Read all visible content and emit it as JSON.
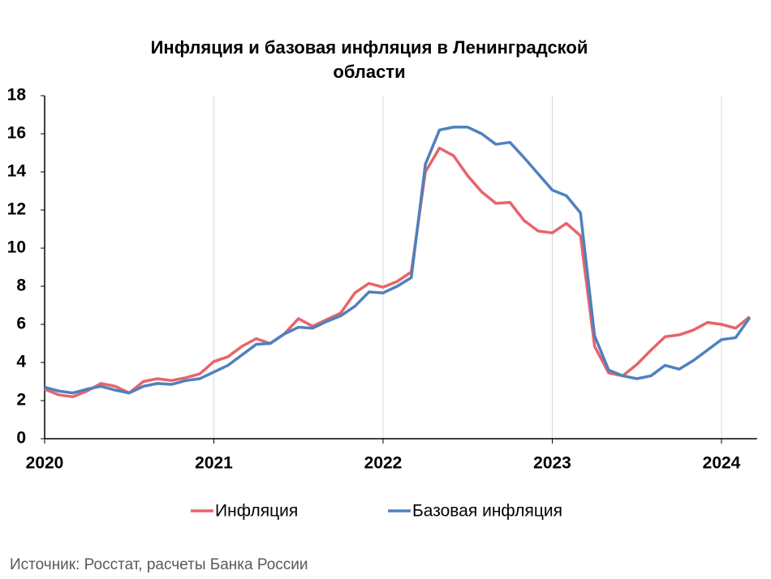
{
  "chart_data": {
    "type": "line",
    "title": "Инфляция и базовая инфляция в Ленинградской области",
    "source": "Источник: Росстат, расчеты Банка России",
    "categories": [
      "2020",
      null,
      null,
      null,
      null,
      null,
      null,
      null,
      null,
      null,
      null,
      null,
      "2021",
      null,
      null,
      null,
      null,
      null,
      null,
      null,
      null,
      null,
      null,
      null,
      "2022",
      null,
      null,
      null,
      null,
      null,
      null,
      null,
      null,
      null,
      null,
      null,
      "2023",
      null,
      null,
      null,
      null,
      null,
      null,
      null,
      null,
      null,
      null,
      null,
      "2024",
      null,
      null
    ],
    "series": [
      {
        "name": "Инфляция",
        "color": "#e8646a",
        "values": [
          2.6,
          2.3,
          2.2,
          2.5,
          2.9,
          2.75,
          2.4,
          3.0,
          3.15,
          3.05,
          3.2,
          3.4,
          4.05,
          4.3,
          4.85,
          5.25,
          5.0,
          5.5,
          6.3,
          5.9,
          6.25,
          6.6,
          7.65,
          8.15,
          7.95,
          8.25,
          8.75,
          14.0,
          15.25,
          14.85,
          13.8,
          12.95,
          12.35,
          12.4,
          11.45,
          10.9,
          10.8,
          11.3,
          10.65,
          4.85,
          3.45,
          3.3,
          3.9,
          4.65,
          5.35,
          5.45,
          5.7,
          6.1,
          6.0,
          5.8,
          6.4
        ]
      },
      {
        "name": "Базовая инфляция",
        "color": "#4f81bd",
        "values": [
          2.7,
          2.5,
          2.4,
          2.6,
          2.75,
          2.55,
          2.4,
          2.75,
          2.9,
          2.85,
          3.05,
          3.15,
          3.5,
          3.85,
          4.4,
          4.95,
          5.0,
          5.5,
          5.85,
          5.8,
          6.15,
          6.45,
          6.95,
          7.7,
          7.65,
          8.0,
          8.45,
          14.4,
          16.2,
          16.35,
          16.35,
          16.0,
          15.45,
          15.55,
          14.75,
          13.9,
          13.05,
          12.75,
          11.85,
          5.4,
          3.6,
          3.3,
          3.15,
          3.3,
          3.85,
          3.65,
          4.1,
          4.65,
          5.2,
          5.3,
          6.35
        ]
      }
    ],
    "ylim": [
      0,
      18
    ],
    "yticks": [
      0,
      2,
      4,
      6,
      8,
      10,
      12,
      14,
      16,
      18
    ],
    "grid": true
  }
}
